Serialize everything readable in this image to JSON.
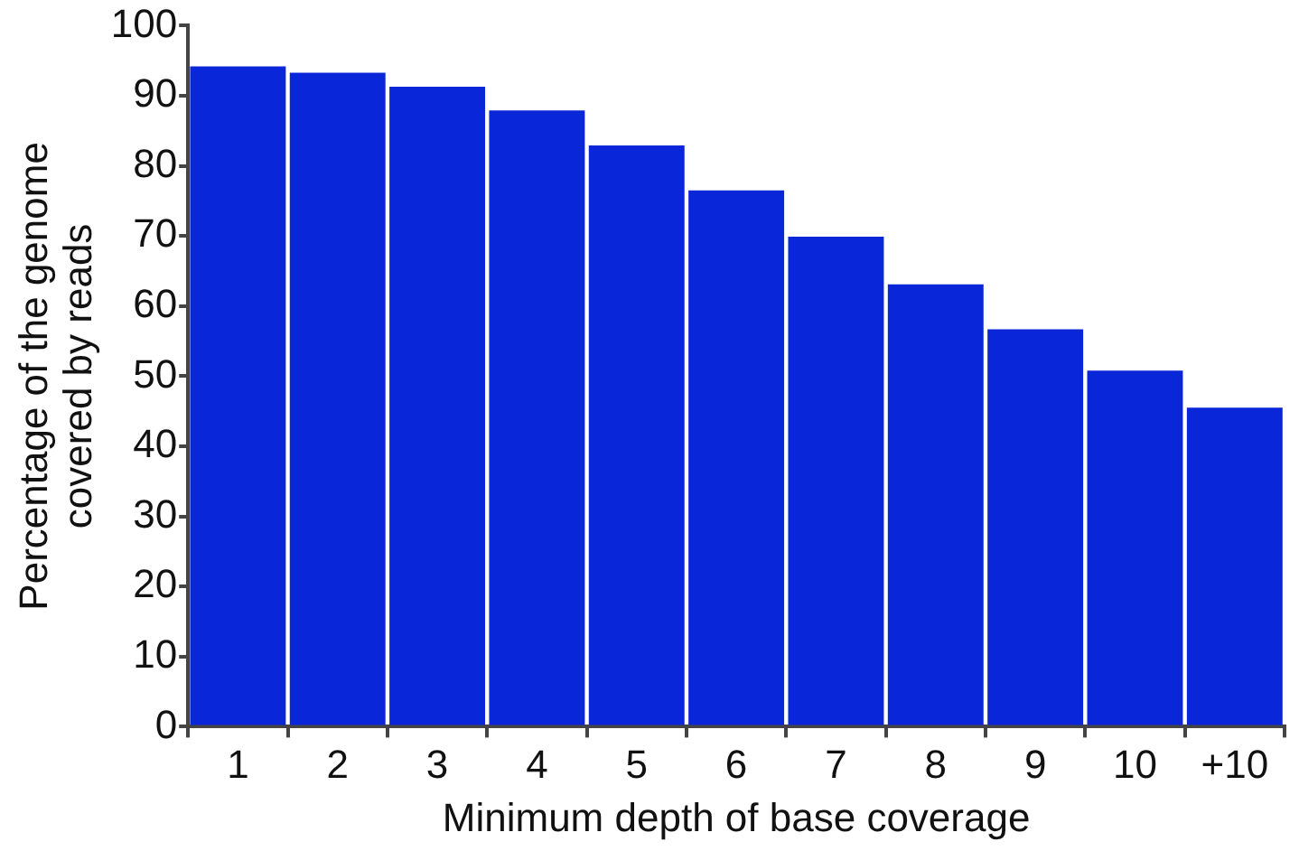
{
  "chart_data": {
    "type": "bar",
    "xlabel": "Minimum depth of base coverage",
    "ylabel": "Percentage of the genome\ncovered by reads",
    "categories": [
      "1",
      "2",
      "3",
      "4",
      "5",
      "6",
      "7",
      "8",
      "9",
      "10",
      "+10"
    ],
    "values": [
      94.2,
      93.3,
      91.3,
      87.9,
      82.9,
      76.5,
      69.9,
      63.1,
      56.7,
      50.8,
      45.5
    ],
    "color": "#0a26d9",
    "ylim": [
      0,
      100
    ],
    "yticks": [
      0,
      10,
      20,
      30,
      40,
      50,
      60,
      70,
      80,
      90,
      100
    ],
    "grid": false,
    "legend": false
  }
}
